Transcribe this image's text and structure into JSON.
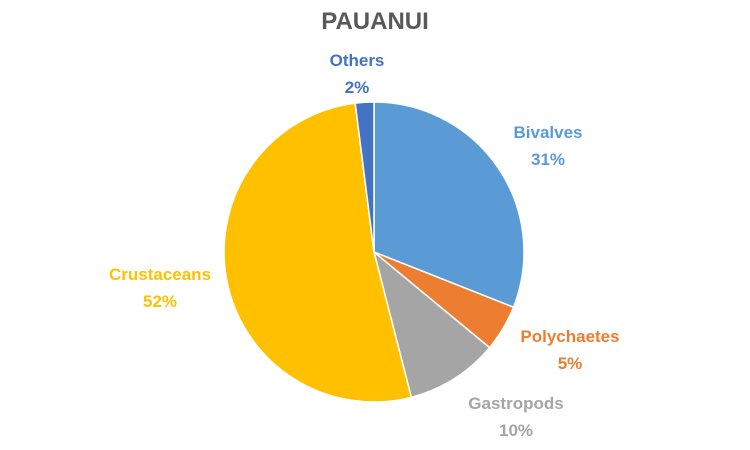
{
  "chart_data": {
    "type": "pie",
    "title": "PAUANUI",
    "slices": [
      {
        "label": "Bivalves",
        "value": 31,
        "value_label": "31%",
        "color": "#5B9BD5"
      },
      {
        "label": "Polychaetes",
        "value": 5,
        "value_label": "5%",
        "color": "#ED7D31"
      },
      {
        "label": "Gastropods",
        "value": 10,
        "value_label": "10%",
        "color": "#A5A5A5"
      },
      {
        "label": "Crustaceans",
        "value": 52,
        "value_label": "52%",
        "color": "#FFC000"
      },
      {
        "label": "Others",
        "value": 2,
        "value_label": "2%",
        "color": "#4472C4"
      }
    ],
    "start_angle_deg": 0,
    "direction": "clockwise",
    "legend": "none"
  }
}
